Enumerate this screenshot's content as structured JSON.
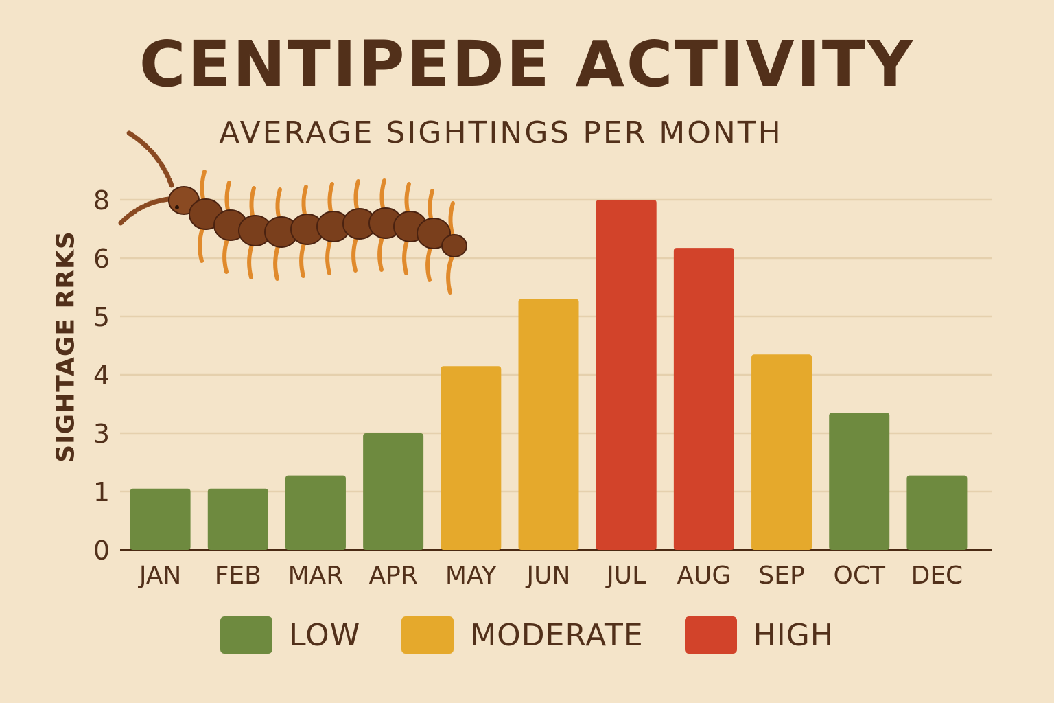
{
  "colors": {
    "background": "#f4e4c9",
    "grid": "#e5d0ad",
    "axis": "#4a2a14",
    "text": "#52301a",
    "low": "#6e8a3f",
    "moderate": "#e5a92c",
    "high": "#d2432a"
  },
  "legend": [
    {
      "level": "low",
      "label": "LOW"
    },
    {
      "level": "moderate",
      "label": "MODERATE"
    },
    {
      "level": "high",
      "label": "HIGH"
    }
  ],
  "chart_data": {
    "type": "bar",
    "title": "CENTIPEDE ACTIVITY",
    "subtitle": "AVERAGE SIGHTINGS PER MONTH",
    "xlabel": "",
    "ylabel": "SIGHTAGE RRKS",
    "categories": [
      "JAN",
      "FEB",
      "MAR",
      "APR",
      "MAY",
      "JUN",
      "JUL",
      "AUG",
      "SEP",
      "OCT",
      "DEC"
    ],
    "values": [
      1.1,
      1.1,
      1.55,
      3.0,
      4.15,
      5.3,
      8.15,
      6.35,
      4.35,
      3.35,
      1.55
    ],
    "levels": [
      "low",
      "low",
      "low",
      "low",
      "moderate",
      "moderate",
      "high",
      "high",
      "moderate",
      "low",
      "low"
    ],
    "y_ticks": [
      0,
      1,
      3,
      4,
      5,
      6,
      8
    ],
    "y_tick_positions": [
      0,
      1,
      2,
      3,
      4,
      5,
      6
    ],
    "grid": true,
    "legend_position": "bottom",
    "decoration": "centipede-illustration"
  }
}
